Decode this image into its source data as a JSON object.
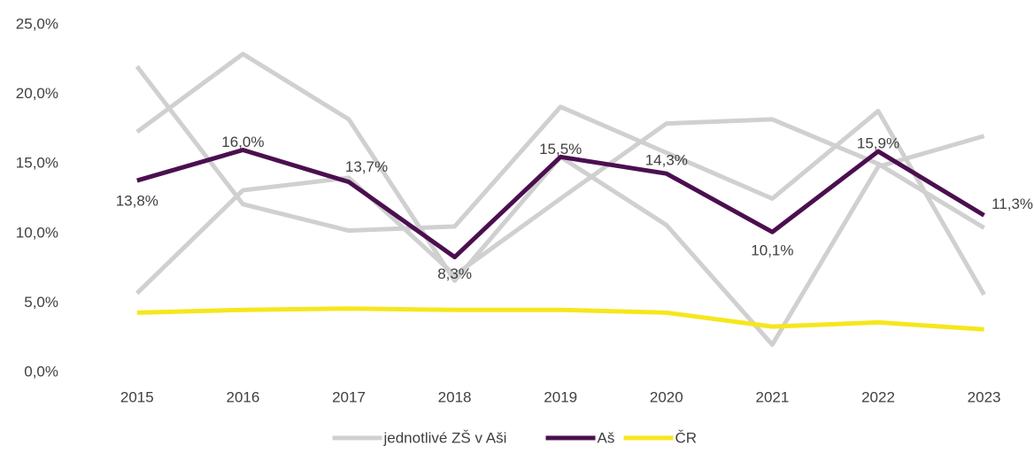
{
  "chart_data": {
    "type": "line",
    "categories": [
      "2015",
      "2016",
      "2017",
      "2018",
      "2019",
      "2020",
      "2021",
      "2022",
      "2023"
    ],
    "series": [
      {
        "name": "jednotlivé ZŠ v Aši",
        "color": "#d0d0d0",
        "values": [
          22.0,
          12.1,
          10.2,
          10.5,
          19.1,
          15.8,
          12.5,
          18.8,
          5.6
        ]
      },
      {
        "color": "#d0d0d0",
        "values": [
          17.3,
          22.9,
          18.2,
          6.6,
          15.5,
          10.6,
          2.0,
          14.8,
          17.0
        ]
      },
      {
        "color": "#d0d0d0",
        "values": [
          5.7,
          13.1,
          14.0,
          7.0,
          12.5,
          17.9,
          18.2,
          15.0,
          10.4
        ]
      },
      {
        "name": "Aš",
        "color": "#4b0f4f",
        "values": [
          13.8,
          16.0,
          13.7,
          8.3,
          15.5,
          14.3,
          10.1,
          15.9,
          11.3
        ],
        "value_labels": [
          "13,8%",
          "16,0%",
          "13,7%",
          "8,3%",
          "15,5%",
          "14,3%",
          "10,1%",
          "15,9%",
          "11,3%"
        ]
      },
      {
        "name": "ČR",
        "color": "#f5e71c",
        "values": [
          4.3,
          4.5,
          4.6,
          4.5,
          4.5,
          4.3,
          3.3,
          3.6,
          3.1
        ]
      }
    ],
    "ylim": [
      0,
      25
    ],
    "yticks": [
      {
        "value": 0,
        "label": "0,0%"
      },
      {
        "value": 5,
        "label": "5,0%"
      },
      {
        "value": 10,
        "label": "10,0%"
      },
      {
        "value": 15,
        "label": "15,0%"
      },
      {
        "value": 20,
        "label": "20,0%"
      },
      {
        "value": 25,
        "label": "25,0%"
      }
    ],
    "grid": false
  }
}
